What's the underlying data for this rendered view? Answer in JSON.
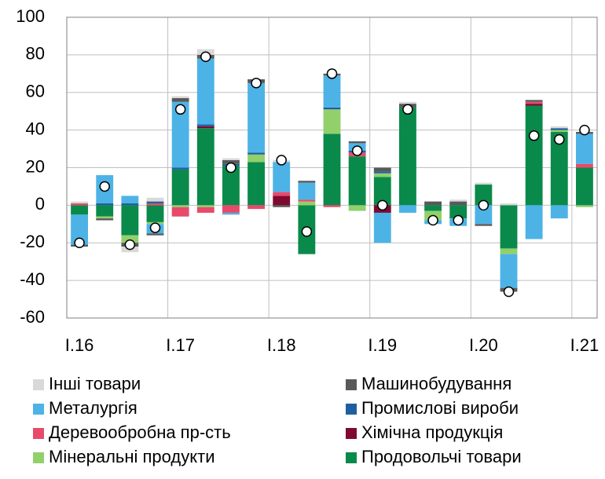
{
  "chart_data": {
    "type": "stacked_bar",
    "categories": [
      "I.16",
      null,
      null,
      null,
      "I.17",
      null,
      null,
      null,
      "I.18",
      null,
      null,
      null,
      "I.19",
      null,
      null,
      null,
      "I.20",
      null,
      null,
      null,
      "I.21"
    ],
    "series": [
      {
        "name": "Інші товари",
        "color": "#d9d9d9",
        "values": [
          1,
          0,
          -3,
          2,
          1,
          3,
          1,
          0,
          1,
          0,
          0,
          0,
          0,
          1,
          0,
          1,
          1,
          1,
          0,
          1,
          0
        ]
      },
      {
        "name": "Машинобудування",
        "color": "#595959",
        "values": [
          -1,
          -1,
          -2,
          -1,
          2,
          2,
          2,
          2,
          -1,
          1,
          1,
          1,
          2,
          2,
          2,
          2,
          -1,
          -2,
          1,
          0,
          1
        ]
      },
      {
        "name": "Металургія",
        "color": "#4db3e6",
        "values": [
          -16,
          15,
          4,
          -5,
          35,
          35,
          -1,
          37,
          16,
          9,
          17,
          4,
          -16,
          -4,
          -2,
          -4,
          -10,
          -18,
          -18,
          -7,
          16
        ]
      },
      {
        "name": "Промислові вироби",
        "color": "#1f5fa0",
        "values": [
          0,
          1,
          1,
          1,
          1,
          1,
          1,
          1,
          0,
          0,
          1,
          1,
          1,
          0,
          0,
          0,
          0,
          0,
          0,
          1,
          0
        ]
      },
      {
        "name": "Деревообробна пр-сть",
        "color": "#e84a6a",
        "values": [
          1,
          0,
          0,
          1,
          -5,
          -3,
          -4,
          -2,
          2,
          1,
          -1,
          2,
          0,
          0,
          0,
          0,
          0,
          0,
          1,
          0,
          2
        ]
      },
      {
        "name": "Хімічна продукція",
        "color": "#7f0a30",
        "values": [
          0,
          0,
          0,
          0,
          0,
          1,
          0,
          0,
          5,
          0,
          0,
          0,
          -4,
          0,
          0,
          0,
          0,
          0,
          1,
          0,
          0
        ]
      },
      {
        "name": "Мінеральні продукти",
        "color": "#92d06c",
        "values": [
          0,
          -1,
          -4,
          -1,
          -1,
          -1,
          0,
          4,
          0,
          2,
          13,
          -3,
          2,
          0,
          -5,
          0,
          0,
          -3,
          0,
          1,
          -1
        ]
      },
      {
        "name": "Продовольчі товари",
        "color": "#0a8a4a",
        "values": [
          -5,
          -6,
          -16,
          -9,
          19,
          41,
          21,
          23,
          0,
          -26,
          38,
          26,
          15,
          52,
          -3,
          -7,
          11,
          -23,
          53,
          39,
          20
        ]
      }
    ],
    "totals": {
      "values": [
        -20,
        10,
        -21,
        -12,
        51,
        79,
        20,
        65,
        24,
        -14,
        70,
        29,
        0,
        51,
        -8,
        -8,
        0,
        -46,
        37,
        35,
        40
      ]
    },
    "ylim": [
      -60,
      100
    ],
    "yticks": [
      -60,
      -40,
      -20,
      0,
      20,
      40,
      60,
      80,
      100
    ],
    "grid": true
  }
}
